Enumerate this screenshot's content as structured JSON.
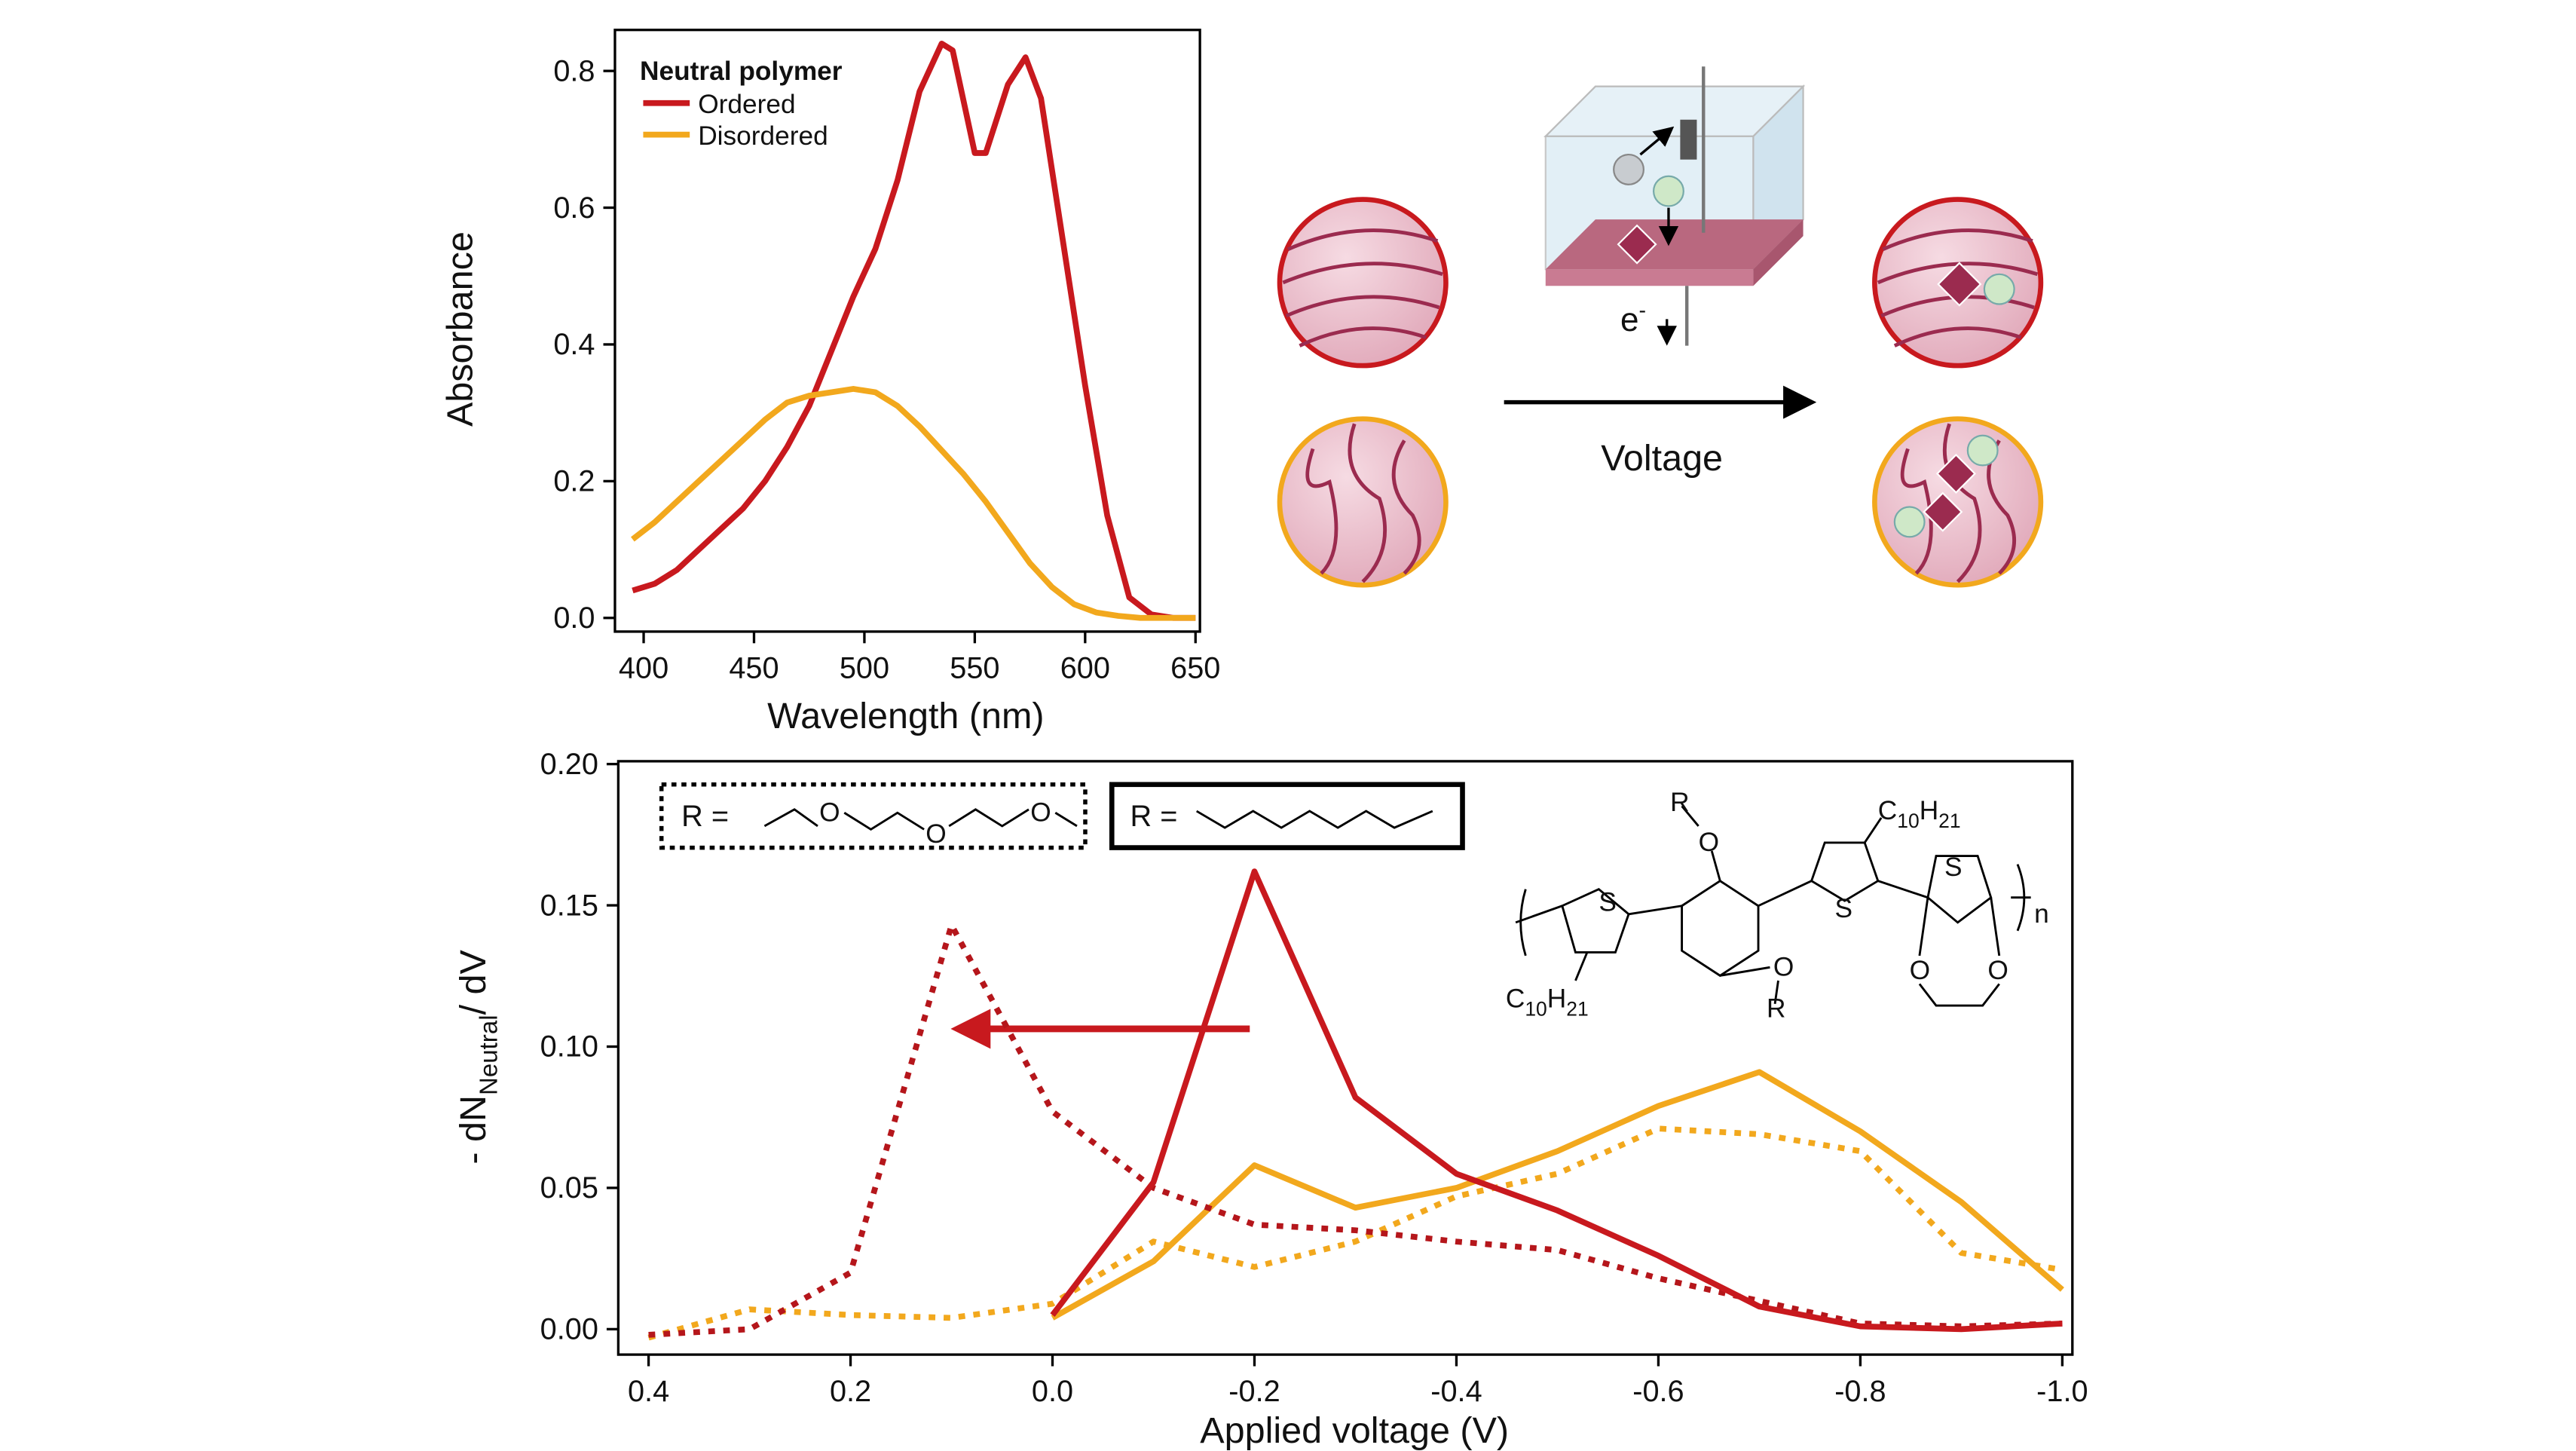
{
  "chart_data": [
    {
      "type": "line",
      "xlabel": "Wavelength (nm)",
      "ylabel": "Absorbance",
      "legend_title": "Neutral polymer",
      "legend": "upper left",
      "xlim": [
        387,
        652
      ],
      "ylim": [
        -0.02,
        0.86
      ],
      "xticks": [
        400,
        450,
        500,
        550,
        600,
        650
      ],
      "yticks": [
        {
          "value": 0,
          "label": "0.0"
        },
        0.2,
        0.4,
        0.6,
        0.8
      ],
      "series": [
        {
          "name": "Ordered",
          "color": "#c8191e",
          "style": "solid",
          "x": [
            395,
            405,
            415,
            425,
            435,
            445,
            455,
            465,
            475,
            485,
            495,
            505,
            515,
            525,
            535,
            540,
            550,
            555,
            565,
            573,
            580,
            590,
            600,
            610,
            620,
            630,
            640,
            650
          ],
          "values": [
            0.04,
            0.05,
            0.07,
            0.1,
            0.13,
            0.16,
            0.2,
            0.25,
            0.31,
            0.39,
            0.47,
            0.54,
            0.64,
            0.77,
            0.84,
            0.83,
            0.68,
            0.68,
            0.78,
            0.82,
            0.76,
            0.55,
            0.34,
            0.15,
            0.03,
            0.005,
            0,
            0
          ]
        },
        {
          "name": "Disordered",
          "color": "#f2a81d",
          "style": "solid",
          "x": [
            395,
            405,
            415,
            425,
            435,
            445,
            455,
            465,
            475,
            485,
            495,
            505,
            515,
            525,
            535,
            545,
            555,
            565,
            575,
            585,
            595,
            605,
            615,
            625,
            650
          ],
          "values": [
            0.115,
            0.14,
            0.17,
            0.2,
            0.23,
            0.26,
            0.29,
            0.315,
            0.325,
            0.33,
            0.335,
            0.33,
            0.31,
            0.28,
            0.245,
            0.21,
            0.17,
            0.125,
            0.08,
            0.045,
            0.02,
            0.008,
            0.003,
            0,
            0
          ]
        }
      ]
    },
    {
      "type": "line",
      "xlabel": "Applied voltage (V)",
      "ylabel": [
        "- dN",
        "Neutral",
        "/ dV"
      ],
      "xlim": [
        0.43,
        -1.01
      ],
      "ylim": [
        -0.009,
        0.201
      ],
      "xticks": [
        0.4,
        0.2,
        {
          "value": 0,
          "label": "0.0"
        },
        -0.2,
        -0.4,
        -0.6,
        -0.8,
        {
          "value": -1,
          "label": "-1.0"
        }
      ],
      "yticks": [
        {
          "value": 0,
          "label": "0.00"
        },
        0.05,
        {
          "value": 0.1,
          "label": "0.10"
        },
        0.15,
        {
          "value": 0.2,
          "label": "0.20"
        }
      ],
      "x": [
        0.4,
        0.3,
        0.2,
        0.1,
        0,
        -0.1,
        -0.2,
        -0.3,
        -0.4,
        -0.5,
        -0.6,
        -0.7,
        -0.8,
        -0.9,
        -1.0
      ],
      "series": [
        {
          "color": "#f2a81d",
          "style": "dotted",
          "values": [
            -0.003,
            0.007,
            0.005,
            0.004,
            0.009,
            0.031,
            0.022,
            0.031,
            0.047,
            0.055,
            0.071,
            0.069,
            0.063,
            0.027,
            0.021
          ]
        },
        {
          "color": "#f2a81d",
          "style": "solid",
          "values": [
            null,
            null,
            null,
            null,
            0.004,
            0.024,
            0.058,
            0.043,
            0.05,
            0.063,
            0.079,
            0.091,
            0.07,
            0.045,
            0.014
          ]
        },
        {
          "color": "#b5161b",
          "style": "dotted",
          "values": [
            -0.002,
            0,
            0.02,
            0.143,
            0.077,
            0.05,
            0.037,
            0.035,
            0.031,
            0.028,
            0.018,
            0.01,
            0.002,
            0.001,
            0.002
          ]
        },
        {
          "color": "#c8191e",
          "style": "solid",
          "values": [
            null,
            null,
            null,
            null,
            0.005,
            0.052,
            0.162,
            0.082,
            0.055,
            0.042,
            0.026,
            0.008,
            0.001,
            0,
            0.002
          ]
        }
      ],
      "structure": {
        "r_label": "R =",
        "glycol_o": [
          "O",
          "O",
          "O"
        ],
        "s": [
          "S",
          "S",
          "S"
        ],
        "o": [
          "O",
          "O",
          "O",
          "O"
        ],
        "r": [
          "R",
          "R"
        ],
        "c": "C",
        "c_sub": "10",
        "h": "H",
        "h_sub": "21",
        "n": "n"
      }
    }
  ],
  "diagram": {
    "voltage": "Voltage",
    "electron": "e",
    "electron_sup": "-"
  }
}
